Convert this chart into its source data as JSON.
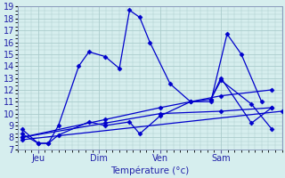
{
  "xlabel": "Température (°c)",
  "bg_color": "#d6eeee",
  "grid_color": "#aacccc",
  "line_color": "#0000cc",
  "ylim": [
    7,
    19
  ],
  "xlim": [
    0,
    13
  ],
  "yticks": [
    7,
    8,
    9,
    10,
    11,
    12,
    13,
    14,
    15,
    16,
    17,
    18,
    19
  ],
  "xtick_positions": [
    1,
    4,
    7,
    10
  ],
  "xticklabels": [
    "Jeu",
    "Dim",
    "Ven",
    "Sam"
  ],
  "series": [
    {
      "x": [
        0.2,
        1.0,
        1.5,
        2.0,
        3.0,
        3.5,
        4.3,
        5.0,
        5.5,
        6.0,
        6.5,
        7.5,
        8.5,
        9.5,
        10.3,
        11.0,
        12.0
      ],
      "y": [
        8.7,
        7.5,
        7.5,
        9.0,
        14.0,
        15.2,
        14.8,
        13.8,
        18.7,
        18.1,
        16.0,
        12.5,
        11.0,
        11.0,
        16.7,
        15.0,
        11.0
      ]
    },
    {
      "x": [
        0.2,
        1.0,
        1.5,
        2.0,
        3.5,
        4.3,
        5.5,
        6.0,
        7.0,
        8.5,
        9.5,
        10.0,
        11.5,
        12.5
      ],
      "y": [
        8.3,
        7.5,
        7.5,
        8.2,
        9.3,
        9.0,
        9.3,
        8.3,
        9.8,
        11.0,
        11.2,
        12.8,
        10.8,
        8.7
      ]
    },
    {
      "x": [
        0.2,
        13.0
      ],
      "y": [
        7.8,
        10.2
      ]
    },
    {
      "x": [
        0.2,
        4.3,
        7.0,
        10.0,
        12.5
      ],
      "y": [
        8.0,
        9.2,
        10.0,
        10.2,
        10.5
      ]
    },
    {
      "x": [
        0.2,
        4.3,
        7.0,
        10.0,
        12.5
      ],
      "y": [
        8.0,
        9.5,
        10.5,
        11.5,
        12.0
      ]
    },
    {
      "x": [
        9.5,
        10.0,
        11.5,
        12.5
      ],
      "y": [
        11.2,
        13.0,
        9.2,
        10.5
      ]
    }
  ]
}
